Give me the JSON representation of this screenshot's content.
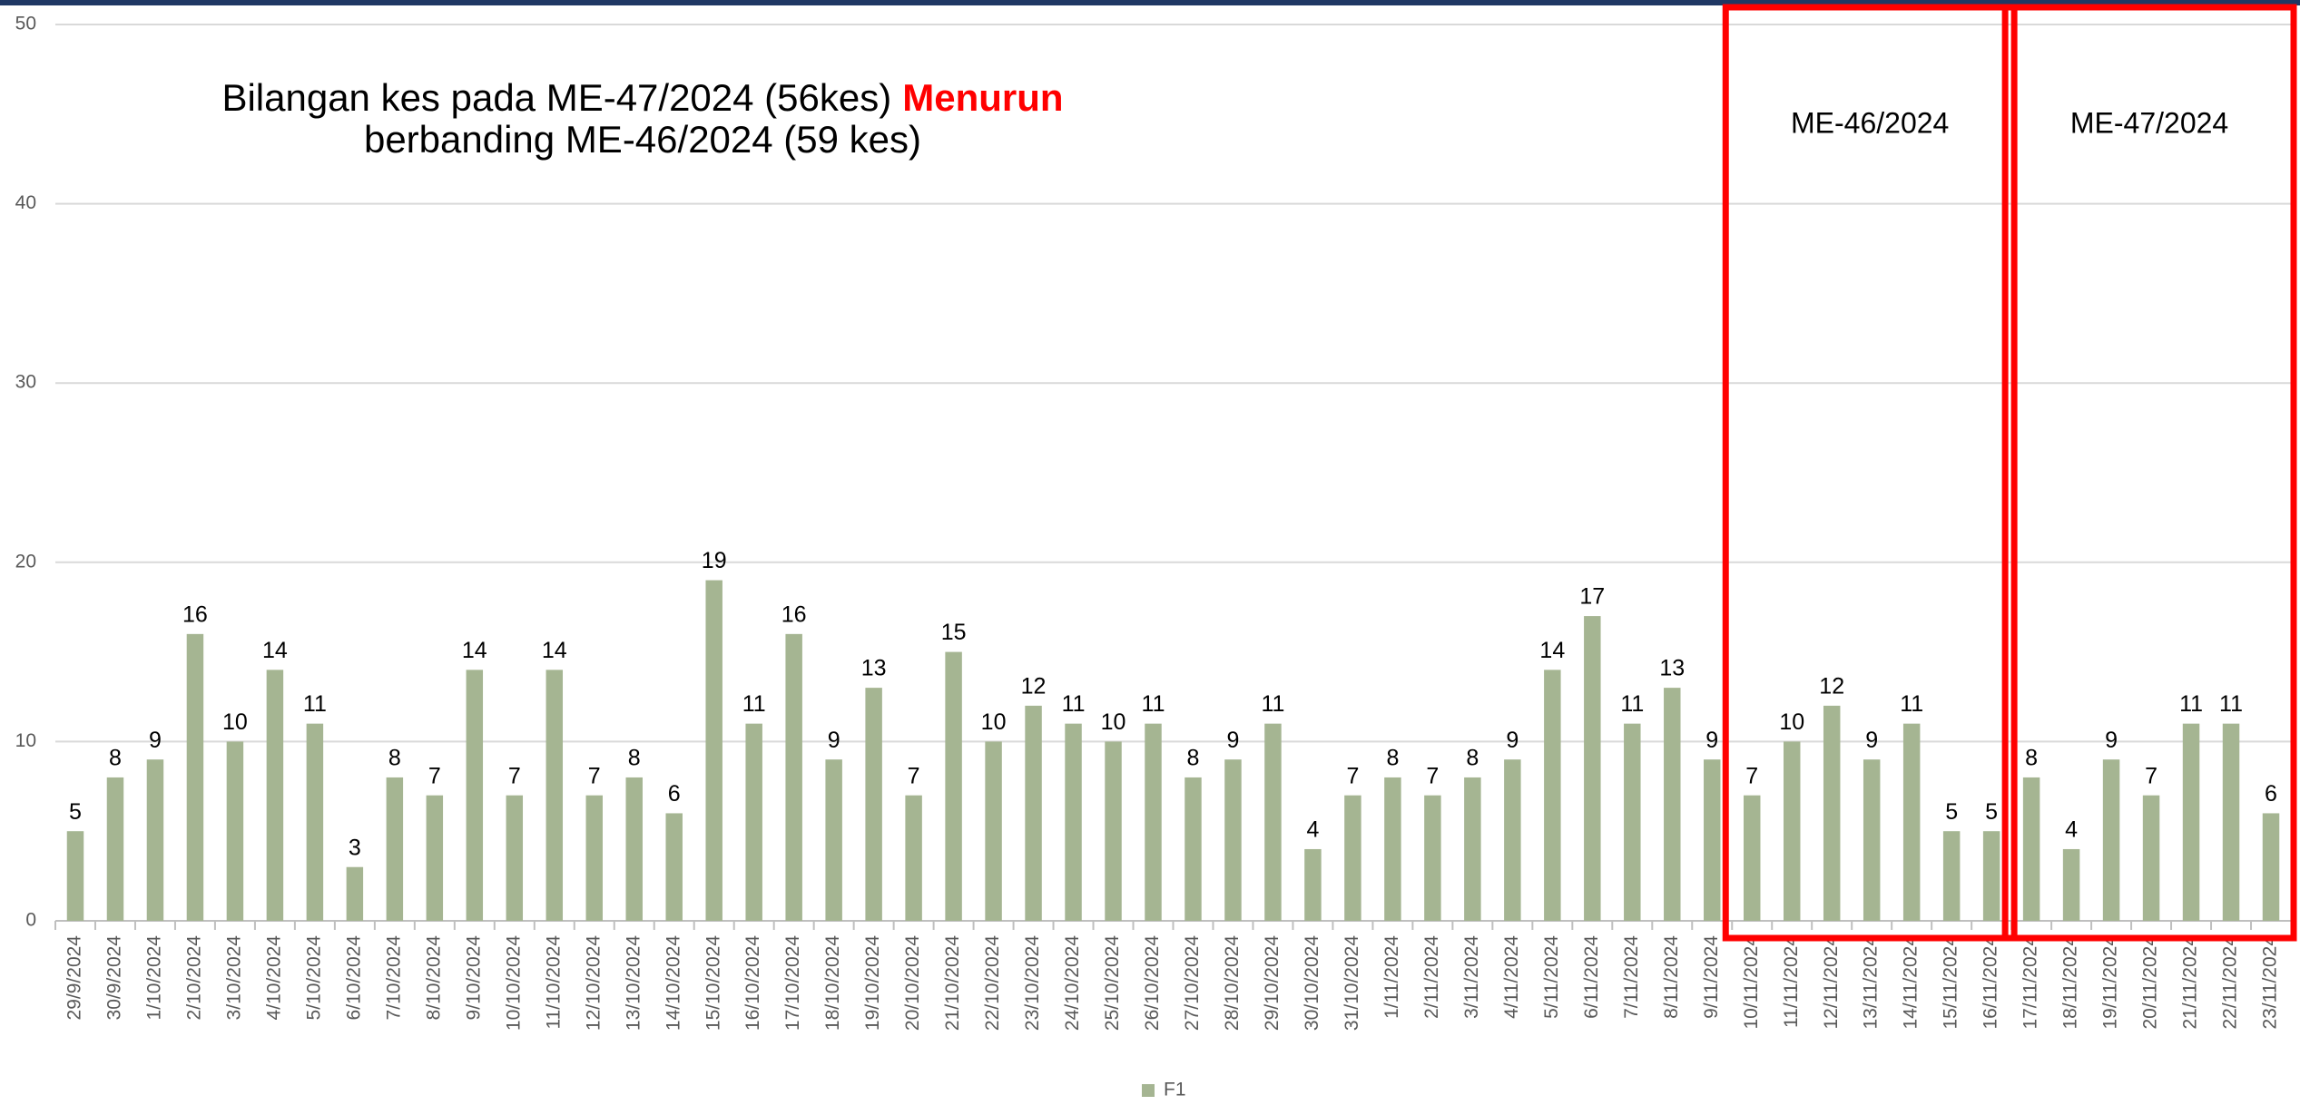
{
  "chart_data": {
    "type": "bar",
    "title": "Bilangan kes pada ME-47/2024 (56kes)",
    "title_highlight": "Menurun",
    "subtitle": "berbanding ME-46/2024 (59 kes)",
    "categories": [
      "29/9/2024",
      "30/9/2024",
      "1/10/2024",
      "2/10/2024",
      "3/10/2024",
      "4/10/2024",
      "5/10/2024",
      "6/10/2024",
      "7/10/2024",
      "8/10/2024",
      "9/10/2024",
      "10/10/2024",
      "11/10/2024",
      "12/10/2024",
      "13/10/2024",
      "14/10/2024",
      "15/10/2024",
      "16/10/2024",
      "17/10/2024",
      "18/10/2024",
      "19/10/2024",
      "20/10/2024",
      "21/10/2024",
      "22/10/2024",
      "23/10/2024",
      "24/10/2024",
      "25/10/2024",
      "26/10/2024",
      "27/10/2024",
      "28/10/2024",
      "29/10/2024",
      "30/10/2024",
      "31/10/2024",
      "1/11/2024",
      "2/11/2024",
      "3/11/2024",
      "4/11/2024",
      "5/11/2024",
      "6/11/2024",
      "7/11/2024",
      "8/11/2024",
      "9/11/2024",
      "10/11/2024",
      "11/11/2024",
      "12/11/2024",
      "13/11/2024",
      "14/11/2024",
      "15/11/2024",
      "16/11/2024",
      "17/11/2024",
      "18/11/2024",
      "19/11/2024",
      "20/11/2024",
      "21/11/2024",
      "22/11/2024",
      "23/11/2024"
    ],
    "series": [
      {
        "name": "F1",
        "color": "#a5b592",
        "values": [
          5,
          8,
          9,
          16,
          10,
          14,
          11,
          3,
          8,
          7,
          14,
          7,
          14,
          7,
          8,
          6,
          19,
          11,
          16,
          9,
          13,
          7,
          15,
          10,
          12,
          11,
          10,
          11,
          8,
          9,
          11,
          4,
          7,
          8,
          7,
          8,
          9,
          14,
          17,
          11,
          13,
          9,
          7,
          10,
          12,
          9,
          11,
          5,
          5,
          8,
          4,
          9,
          7,
          11,
          11,
          6
        ]
      }
    ],
    "ylim": [
      0,
      50
    ],
    "yticks": [
      0,
      10,
      20,
      30,
      40,
      50
    ],
    "grid": true,
    "legend": "bottom",
    "highlight_color": "#ff0000",
    "annotations": [
      {
        "label": "ME-46/2024",
        "from": "10/11/2024",
        "to": "16/11/2024"
      },
      {
        "label": "ME-47/2024",
        "from": "17/11/2024",
        "to": "23/11/2024"
      }
    ]
  }
}
